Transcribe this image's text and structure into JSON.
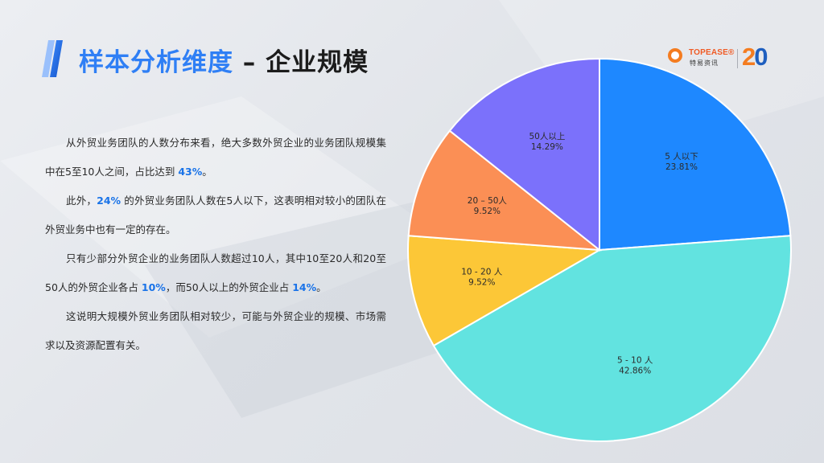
{
  "header": {
    "title_accent": "样本分析维度",
    "title_rest": "– 企业规模",
    "logo": {
      "brand_en": "TOPEASE®",
      "brand_cn": "特易资讯",
      "anniversary_2": "2",
      "anniversary_0": "0"
    }
  },
  "text": {
    "p1": [
      "从外贸业务团队的人数分布来看，绝大多数外贸企业的业务团队规模集中在5至10人之间，占比达到 ",
      "43%",
      "。"
    ],
    "p2": [
      "此外，",
      "24%",
      " 的外贸业务团队人数在5人以下，这表明相对较小的团队在外贸业务中也有一定的存在。"
    ],
    "p3": [
      "只有少部分外贸企业的业务团队人数超过10人，其中10至20人和20至50人的外贸企业各占 ",
      "10%",
      "，而50人以上的外贸企业占 ",
      "14%",
      "。"
    ],
    "p4": "这说明大规模外贸业务团队相对较少，可能与外贸企业的规模、市场需求以及资源配置有关。"
  },
  "colors": {
    "accent": "#2f7ff5",
    "highlight": "#1a73e8",
    "logo_orange": "#f47c20",
    "logo_blue": "#1f5fbf"
  },
  "chart_data": {
    "type": "pie",
    "start_angle_deg": 0,
    "direction": "clockwise",
    "slices": [
      {
        "label": "5 人以下",
        "value": 23.81,
        "display": "23.81%",
        "color": "#1e88ff"
      },
      {
        "label": "5 - 10 人",
        "value": 42.86,
        "display": "42.86%",
        "color": "#62e3e0"
      },
      {
        "label": "10 - 20 人",
        "value": 9.52,
        "display": "9.52%",
        "color": "#fcc737"
      },
      {
        "label": "20 – 50人",
        "value": 9.52,
        "display": "9.52%",
        "color": "#fb8f55"
      },
      {
        "label": "50人以上",
        "value": 14.29,
        "display": "14.29%",
        "color": "#7b71fb"
      }
    ]
  }
}
